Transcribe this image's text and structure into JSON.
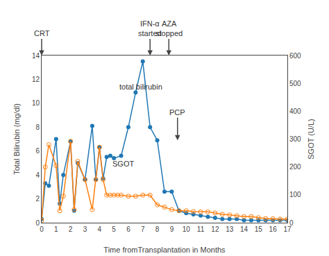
{
  "chart_data": {
    "type": "line",
    "xlabel": "Time fromTransplantation in Months",
    "ylabel": "Total Bilirubin (mg/dl)",
    "y2label": "SGOT (U/L)",
    "xlim": [
      0,
      17
    ],
    "xticks": [
      0,
      1,
      2,
      3,
      4,
      5,
      6,
      7,
      8,
      9,
      10,
      11,
      12,
      13,
      14,
      15,
      16,
      17
    ],
    "ylim": [
      0,
      14
    ],
    "yticks": [
      0,
      2,
      4,
      6,
      8,
      10,
      12,
      14
    ],
    "y2lim": [
      0,
      600
    ],
    "y2ticks": [
      0,
      100,
      200,
      300,
      400,
      500,
      600
    ],
    "grid": false,
    "series": [
      {
        "marker": "filled circle",
        "x": [
          0,
          0.25,
          0.5,
          1.0,
          1.25,
          1.5,
          2.0,
          2.25,
          2.5,
          3.0,
          3.5,
          3.75,
          4.0,
          4.25,
          4.5,
          4.75,
          5.0,
          5.5,
          6.0,
          6.5,
          7.0,
          7.5,
          8.0,
          8.5,
          9.0,
          9.5,
          10.0,
          10.5,
          11.0,
          11.5,
          12.0,
          12.5,
          13.0,
          13.5,
          14.0,
          14.5,
          15.0,
          15.5,
          16.0,
          16.5,
          17.0
        ],
        "values": [
          0.3,
          3.3,
          3.1,
          7.0,
          1.6,
          4.0,
          6.8,
          1.0,
          5.0,
          3.6,
          8.1,
          3.6,
          6.3,
          3.7,
          5.5,
          5.6,
          5.4,
          5.6,
          8.0,
          10.9,
          13.5,
          8.0,
          6.9,
          2.6,
          2.6,
          1.0,
          0.8,
          0.7,
          0.6,
          0.5,
          0.4,
          0.3,
          0.3,
          0.3,
          0.2,
          0.2,
          0.2,
          0.2,
          0.2,
          0.2,
          0.2
        ]
      },
      {
        "marker": "open circle",
        "axis": "y2",
        "x": [
          0,
          0.25,
          0.5,
          1.0,
          1.25,
          1.5,
          2.0,
          2.25,
          2.5,
          3.0,
          3.5,
          3.75,
          4.0,
          4.25,
          4.5,
          4.75,
          5.0,
          5.25,
          5.5,
          6.0,
          6.5,
          7.0,
          7.5,
          8.0,
          8.5,
          9.0,
          9.5,
          10.0,
          10.5,
          11.0,
          11.5,
          12.0,
          12.5,
          13.0,
          13.5,
          14.0,
          14.5,
          15.0,
          15.5,
          16.0,
          16.5,
          17.0
        ],
        "values": [
          8,
          200,
          280,
          205,
          43,
          95,
          292,
          47,
          220,
          155,
          47,
          155,
          271,
          155,
          99,
          99,
          99,
          99,
          99,
          95,
          95,
          99,
          99,
          64,
          56,
          47,
          43,
          43,
          40,
          39,
          39,
          35,
          30,
          28,
          25,
          22,
          22,
          18,
          15,
          14,
          13,
          13
        ]
      }
    ],
    "annotations": [
      {
        "text": [
          "CRT"
        ],
        "x": 0,
        "y": 14,
        "arrow": "above"
      },
      {
        "text": [
          "IFN-α",
          "started"
        ],
        "x": 7.5,
        "y": 14,
        "arrow": "above"
      },
      {
        "text": [
          "AZA",
          "stopped"
        ],
        "x": 8.8,
        "y": 14,
        "arrow": "above"
      },
      {
        "text": [
          "PCP"
        ],
        "x": 9.4,
        "y": 8.8,
        "arrow_to": 6.9
      },
      {
        "text": [
          "total bilirubin"
        ],
        "x": 5.3,
        "y": 10.9
      },
      {
        "text": [
          "SGOT"
        ],
        "x": 4.8,
        "y": 4.5
      }
    ]
  }
}
